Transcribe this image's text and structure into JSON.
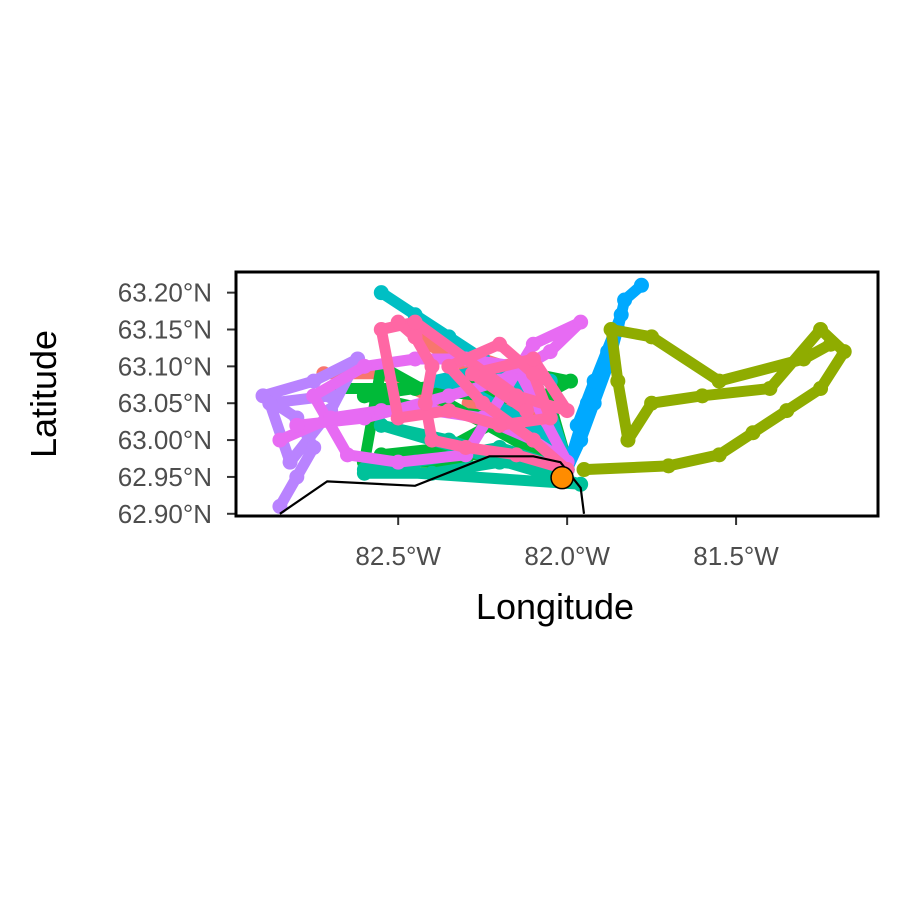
{
  "map": {
    "xlabel": "Longitude",
    "ylabel": "Latitude",
    "x_ticks": [
      {
        "value": -82.5,
        "label": "82.5°W"
      },
      {
        "value": -82.0,
        "label": "82.0°W"
      },
      {
        "value": -81.5,
        "label": "81.5°W"
      }
    ],
    "y_ticks": [
      {
        "value": 63.2,
        "label": "63.20°N"
      },
      {
        "value": 63.15,
        "label": "63.15°N"
      },
      {
        "value": 63.1,
        "label": "63.10°N"
      },
      {
        "value": 63.05,
        "label": "63.05°N"
      },
      {
        "value": 63.0,
        "label": "63.00°N"
      },
      {
        "value": 62.95,
        "label": "62.95°N"
      },
      {
        "value": 62.9,
        "label": "62.90°N"
      }
    ],
    "xlim": [
      -82.98,
      -81.08
    ],
    "ylim": [
      62.897,
      63.228
    ],
    "coastline": [
      [
        -82.85,
        62.9
      ],
      [
        -82.71,
        62.944
      ],
      [
        -82.45,
        62.938
      ],
      [
        -82.23,
        62.978
      ],
      [
        -82.1,
        62.978
      ],
      [
        -82.02,
        62.97
      ],
      [
        -81.96,
        62.935
      ],
      [
        -81.95,
        62.9
      ]
    ],
    "site": {
      "lon": -82.015,
      "lat": 62.949,
      "color": "#ff8c00"
    },
    "tracks": [
      {
        "color": "#f8766d",
        "points": [
          [
            -82.29,
            63.05
          ],
          [
            -82.1,
            63.01
          ],
          [
            -82.0,
            62.96
          ],
          [
            -82.3,
            63.1
          ],
          [
            -82.45,
            63.14
          ],
          [
            -82.18,
            63.1
          ],
          [
            -82.05,
            62.98
          ],
          [
            -82.55,
            63.09
          ],
          [
            -82.72,
            63.09
          ]
        ]
      },
      {
        "color": "#00ba38",
        "points": [
          [
            -82.68,
            63.07
          ],
          [
            -82.45,
            63.07
          ],
          [
            -82.25,
            63.06
          ],
          [
            -82.05,
            63.05
          ],
          [
            -82.0,
            62.97
          ],
          [
            -82.15,
            63.03
          ],
          [
            -82.4,
            63.04
          ],
          [
            -82.6,
            63.06
          ],
          [
            -82.3,
            63.08
          ],
          [
            -82.1,
            63.09
          ],
          [
            -81.99,
            63.08
          ],
          [
            -82.35,
            62.99
          ],
          [
            -82.55,
            62.98
          ],
          [
            -82.25,
            62.98
          ],
          [
            -82.0,
            62.96
          ],
          [
            -82.55,
            63.1
          ],
          [
            -82.6,
            62.97
          ],
          [
            -82.3,
            62.97
          ]
        ]
      },
      {
        "color": "#00c19a",
        "points": [
          [
            -82.6,
            62.955
          ],
          [
            -82.4,
            62.955
          ],
          [
            -82.2,
            62.97
          ],
          [
            -82.0,
            62.96
          ],
          [
            -82.2,
            62.99
          ],
          [
            -82.45,
            62.97
          ],
          [
            -82.6,
            62.96
          ],
          [
            -81.96,
            62.94
          ],
          [
            -82.55,
            63.02
          ],
          [
            -82.35,
            63.0
          ],
          [
            -82.15,
            62.97
          ],
          [
            -82.03,
            62.95
          ]
        ]
      },
      {
        "color": "#00bfc4",
        "points": [
          [
            -82.55,
            63.2
          ],
          [
            -82.45,
            63.17
          ],
          [
            -82.35,
            63.14
          ],
          [
            -82.25,
            63.11
          ],
          [
            -82.15,
            63.08
          ],
          [
            -82.05,
            63.04
          ],
          [
            -82.0,
            62.97
          ],
          [
            -82.1,
            63.02
          ],
          [
            -82.3,
            63.07
          ],
          [
            -82.4,
            63.08
          ],
          [
            -82.2,
            63.1
          ],
          [
            -82.05,
            63.08
          ]
        ]
      },
      {
        "color": "#00a9ff",
        "points": [
          [
            -81.78,
            63.21
          ],
          [
            -81.83,
            63.19
          ],
          [
            -81.85,
            63.15
          ],
          [
            -81.88,
            63.1
          ],
          [
            -81.92,
            63.05
          ],
          [
            -81.96,
            63.0
          ],
          [
            -82.0,
            62.96
          ],
          [
            -81.94,
            63.05
          ],
          [
            -81.88,
            63.12
          ],
          [
            -81.84,
            63.17
          ],
          [
            -81.97,
            63.02
          ],
          [
            -81.92,
            63.08
          ]
        ]
      },
      {
        "color": "#8fac00",
        "points": [
          [
            -81.95,
            62.96
          ],
          [
            -81.7,
            62.965
          ],
          [
            -81.55,
            62.98
          ],
          [
            -81.45,
            63.01
          ],
          [
            -81.35,
            63.04
          ],
          [
            -81.25,
            63.07
          ],
          [
            -81.18,
            63.12
          ],
          [
            -81.25,
            63.15
          ],
          [
            -81.4,
            63.07
          ],
          [
            -81.6,
            63.06
          ],
          [
            -81.75,
            63.05
          ],
          [
            -81.82,
            63.0
          ],
          [
            -81.85,
            63.08
          ],
          [
            -81.87,
            63.15
          ],
          [
            -81.75,
            63.14
          ],
          [
            -81.55,
            63.08
          ],
          [
            -81.3,
            63.11
          ],
          [
            -81.22,
            63.13
          ]
        ]
      },
      {
        "color": "#b983ff",
        "points": [
          [
            -82.85,
            62.91
          ],
          [
            -82.8,
            62.95
          ],
          [
            -82.75,
            62.99
          ],
          [
            -82.8,
            63.03
          ],
          [
            -82.9,
            63.06
          ],
          [
            -82.75,
            63.08
          ],
          [
            -82.62,
            63.11
          ],
          [
            -82.7,
            63.04
          ],
          [
            -82.82,
            62.97
          ],
          [
            -82.88,
            63.05
          ],
          [
            -82.7,
            63.06
          ]
        ]
      },
      {
        "color": "#e76bf3",
        "points": [
          [
            -82.85,
            63.0
          ],
          [
            -82.7,
            63.03
          ],
          [
            -82.55,
            63.04
          ],
          [
            -82.4,
            63.04
          ],
          [
            -82.25,
            63.03
          ],
          [
            -82.1,
            63.0
          ],
          [
            -82.0,
            62.97
          ],
          [
            -82.15,
            63.1
          ],
          [
            -82.3,
            63.11
          ],
          [
            -82.45,
            63.11
          ],
          [
            -82.6,
            63.1
          ],
          [
            -82.75,
            63.06
          ],
          [
            -82.65,
            62.98
          ],
          [
            -82.5,
            62.97
          ],
          [
            -82.3,
            62.98
          ],
          [
            -82.1,
            63.13
          ],
          [
            -81.96,
            63.16
          ],
          [
            -82.05,
            63.12
          ],
          [
            -82.2,
            63.08
          ],
          [
            -82.35,
            63.06
          ],
          [
            -82.6,
            63.03
          ],
          [
            -82.8,
            63.02
          ]
        ]
      },
      {
        "color": "#ff67a4",
        "points": [
          [
            -82.5,
            63.16
          ],
          [
            -82.45,
            63.14
          ],
          [
            -82.4,
            63.1
          ],
          [
            -82.42,
            63.05
          ],
          [
            -82.4,
            63.0
          ],
          [
            -82.3,
            62.99
          ],
          [
            -82.15,
            62.98
          ],
          [
            -82.0,
            62.96
          ],
          [
            -82.1,
            63.0
          ],
          [
            -82.25,
            63.05
          ],
          [
            -82.35,
            63.1
          ],
          [
            -82.2,
            63.13
          ],
          [
            -82.1,
            63.09
          ],
          [
            -82.05,
            63.03
          ],
          [
            -82.2,
            63.02
          ],
          [
            -82.35,
            63.04
          ],
          [
            -82.5,
            63.03
          ],
          [
            -82.55,
            63.15
          ],
          [
            -82.45,
            63.16
          ],
          [
            -82.15,
            63.06
          ],
          [
            -82.0,
            63.04
          ],
          [
            -82.1,
            63.11
          ],
          [
            -82.28,
            63.09
          ],
          [
            -82.12,
            63.04
          ]
        ]
      }
    ]
  }
}
